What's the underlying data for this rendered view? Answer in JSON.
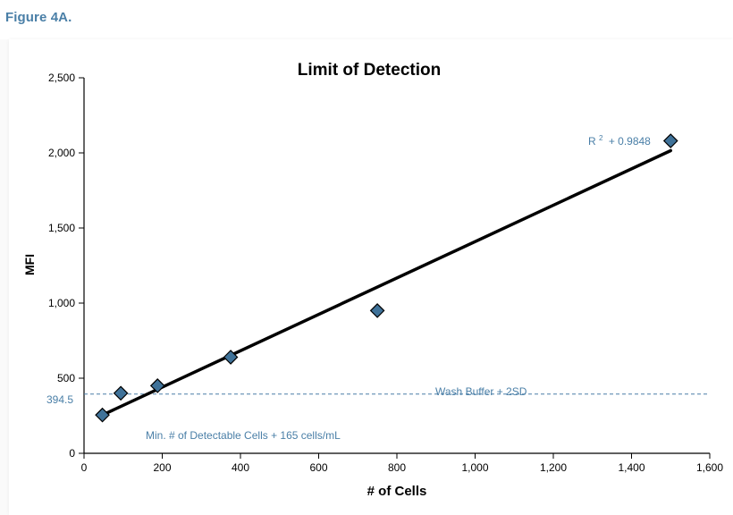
{
  "figure_label": "Figure 4A.",
  "chart_data": {
    "type": "scatter",
    "title": "Limit of Detection",
    "xlabel": "# of Cells",
    "ylabel": "MFI",
    "xlim": [
      0,
      1600
    ],
    "ylim": [
      0,
      2500
    ],
    "x_ticks": [
      0,
      200,
      400,
      600,
      800,
      1000,
      1200,
      1400,
      1600
    ],
    "x_tick_labels": [
      "0",
      "200",
      "400",
      "600",
      "800",
      "1,000",
      "1,200",
      "1,400",
      "1,600"
    ],
    "y_ticks": [
      0,
      500,
      1000,
      1500,
      2000,
      2500
    ],
    "y_tick_labels": [
      "0",
      "500",
      "1,000",
      "1,500",
      "2,000",
      "2,500"
    ],
    "grid": false,
    "series": [
      {
        "points": [
          {
            "x": 47,
            "y": 255
          },
          {
            "x": 94,
            "y": 400
          },
          {
            "x": 188,
            "y": 450
          },
          {
            "x": 375,
            "y": 640
          },
          {
            "x": 750,
            "y": 950
          },
          {
            "x": 1500,
            "y": 2080
          }
        ],
        "marker": "diamond",
        "color": "#3f7299"
      }
    ],
    "trendline": {
      "x": [
        47,
        1500
      ],
      "y": [
        255,
        2015
      ],
      "color": "#000000"
    },
    "threshold": {
      "y": 394.5,
      "label": "Wash Buffer + 2SD",
      "value_label": "394.5",
      "color": "#4a7fa7"
    },
    "annotations": {
      "r_squared": "R",
      "r_squared_sup": "2",
      "r_squared_value": "+ 0.9848",
      "min_detectable": "Min. # of Detectable Cells + 165 cells/mL"
    },
    "colors": {
      "accent": "#4a7fa7",
      "marker_fill": "#3f7299",
      "axis": "#000000"
    }
  }
}
